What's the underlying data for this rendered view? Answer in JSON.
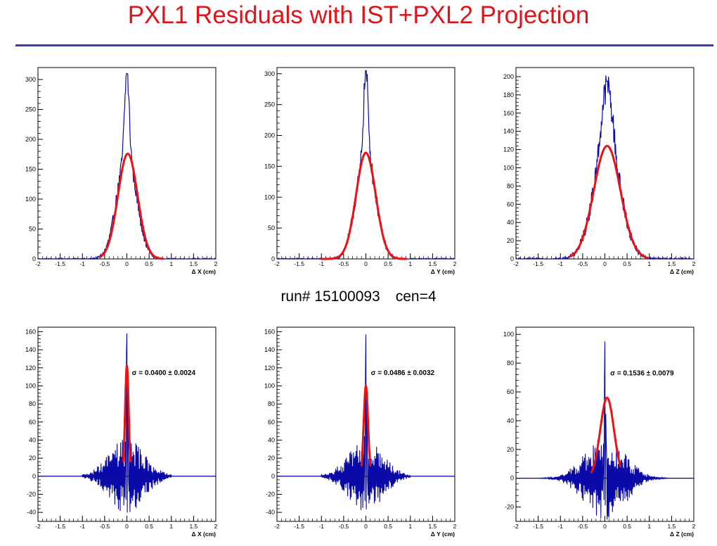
{
  "page": {
    "title": "PXL1 Residuals with IST+PXL2 Projection",
    "run_label": "run# 15100093",
    "cen_label": "cen=4"
  },
  "colors": {
    "title": "#e0121a",
    "rule": "#3b3bb0",
    "histogram": "#0a0aa8",
    "fit": "#ee1111",
    "axis": "#000000"
  },
  "chart_data": [
    {
      "type": "line",
      "id": "top-dx",
      "xlabel": "Δ X (cm)",
      "xlim": [
        -2,
        2
      ],
      "ylim": [
        0,
        320
      ],
      "xticks": [
        -2,
        -1.5,
        -1,
        -0.5,
        0,
        0.5,
        1,
        1.5,
        2
      ],
      "xtick_labels": [
        "-2",
        "-1.5",
        "-1",
        "-0.5",
        "0",
        "0.5",
        "1",
        "1.5",
        "2"
      ],
      "yticks": [
        0,
        50,
        100,
        150,
        200,
        250,
        300
      ],
      "series": [
        {
          "kind": "histogram",
          "shape": "two-gauss",
          "peak": 310,
          "center": 0.0,
          "sigma_narrow": 0.05,
          "narrow_amp": 135,
          "sigma_wide": 0.22,
          "wide_amp": 175,
          "range": [
            -2,
            2
          ]
        },
        {
          "kind": "fit",
          "shape": "gauss",
          "amp": 176,
          "center": 0.02,
          "sigma": 0.22,
          "range": [
            -0.6,
            0.8
          ]
        }
      ],
      "annotation": ""
    },
    {
      "type": "line",
      "id": "top-dy",
      "xlabel": "Δ Y (cm)",
      "xlim": [
        -2,
        2
      ],
      "ylim": [
        0,
        310
      ],
      "xticks": [
        -2,
        -1.5,
        -1,
        -0.5,
        0,
        0.5,
        1,
        1.5,
        2
      ],
      "xtick_labels": [
        "-2",
        "-1.5",
        "-1",
        "-0.5",
        "0",
        "0.5",
        "1",
        "1.5",
        "2"
      ],
      "yticks": [
        0,
        50,
        100,
        150,
        200,
        250,
        300
      ],
      "series": [
        {
          "kind": "histogram",
          "shape": "two-gauss",
          "peak": 305,
          "center": 0.0,
          "sigma_narrow": 0.05,
          "narrow_amp": 135,
          "sigma_wide": 0.22,
          "wide_amp": 170,
          "range": [
            -2,
            2
          ]
        },
        {
          "kind": "fit",
          "shape": "gauss",
          "amp": 172,
          "center": 0.0,
          "sigma": 0.22,
          "range": [
            -1.0,
            0.9
          ]
        }
      ],
      "annotation": ""
    },
    {
      "type": "line",
      "id": "top-dz",
      "xlabel": "Δ Z (cm)",
      "xlim": [
        -2,
        2
      ],
      "ylim": [
        0,
        210
      ],
      "xticks": [
        -2,
        -1.5,
        -1,
        -0.5,
        0,
        0.5,
        1,
        1.5,
        2
      ],
      "xtick_labels": [
        "-2",
        "-1.5",
        "-1",
        "-0.5",
        "0",
        "0.5",
        "1",
        "1.5",
        "2"
      ],
      "yticks": [
        0,
        20,
        40,
        60,
        80,
        100,
        120,
        140,
        160,
        180,
        200
      ],
      "series": [
        {
          "kind": "histogram",
          "shape": "two-gauss",
          "peak": 195,
          "center": 0.05,
          "sigma_narrow": 0.12,
          "narrow_amp": 65,
          "sigma_wide": 0.3,
          "wide_amp": 125,
          "range": [
            -2,
            2
          ]
        },
        {
          "kind": "fit",
          "shape": "gauss",
          "amp": 124,
          "center": 0.05,
          "sigma": 0.3,
          "range": [
            -0.8,
            0.95
          ]
        }
      ],
      "annotation": ""
    },
    {
      "type": "line",
      "id": "bottom-dx",
      "xlabel": "Δ X (cm)",
      "xlim": [
        -2,
        2
      ],
      "ylim": [
        -50,
        165
      ],
      "xticks": [
        -2,
        -1.5,
        -1,
        -0.5,
        0,
        0.5,
        1,
        1.5,
        2
      ],
      "xtick_labels": [
        "-2",
        "-1.5",
        "-1",
        "-0.5",
        "0",
        "0.5",
        "1",
        "1.5",
        "2"
      ],
      "yticks": [
        -40,
        -20,
        0,
        20,
        40,
        60,
        80,
        100,
        120,
        140,
        160
      ],
      "series": [
        {
          "kind": "histogram",
          "shape": "residual-spike",
          "peak": 158,
          "center": 0.0,
          "spread": 0.4,
          "noise": 35,
          "range": [
            -1.0,
            1.0
          ]
        },
        {
          "kind": "fit",
          "shape": "gauss",
          "amp": 122,
          "center": 0.0,
          "sigma": 0.04,
          "range": [
            -0.08,
            0.08
          ]
        }
      ],
      "annotation": "σ = 0.0400 ± 0.0024"
    },
    {
      "type": "line",
      "id": "bottom-dy",
      "xlabel": "Δ Y (cm)",
      "xlim": [
        -2,
        2
      ],
      "ylim": [
        -50,
        165
      ],
      "xticks": [
        -2,
        -1.5,
        -1,
        -0.5,
        0,
        0.5,
        1,
        1.5,
        2
      ],
      "xtick_labels": [
        "-2",
        "-1.5",
        "-1",
        "-0.5",
        "0",
        "0.5",
        "1",
        "1.5",
        "2"
      ],
      "yticks": [
        -40,
        -20,
        0,
        20,
        40,
        60,
        80,
        100,
        120,
        140,
        160
      ],
      "series": [
        {
          "kind": "histogram",
          "shape": "residual-spike",
          "peak": 157,
          "center": 0.0,
          "spread": 0.4,
          "noise": 33,
          "range": [
            -1.0,
            1.0
          ]
        },
        {
          "kind": "fit",
          "shape": "gauss",
          "amp": 100,
          "center": 0.0,
          "sigma": 0.0486,
          "range": [
            -0.1,
            0.1
          ]
        }
      ],
      "annotation": "σ = 0.0486 ± 0.0032"
    },
    {
      "type": "line",
      "id": "bottom-dz",
      "xlabel": "Δ Z (cm)",
      "xlim": [
        -2,
        2
      ],
      "ylim": [
        -30,
        105
      ],
      "xticks": [
        -2,
        -1.5,
        -1,
        -0.5,
        0,
        0.5,
        1,
        1.5,
        2
      ],
      "xtick_labels": [
        "-2",
        "-1.5",
        "-1",
        "-0.5",
        "0",
        "0.5",
        "1",
        "1.5",
        "2"
      ],
      "yticks": [
        -20,
        0,
        20,
        40,
        60,
        80,
        100
      ],
      "series": [
        {
          "kind": "histogram",
          "shape": "residual-spike",
          "peak": 95,
          "center": 0.0,
          "spread": 0.45,
          "noise": 25,
          "range": [
            -1.5,
            1.7
          ]
        },
        {
          "kind": "fit",
          "shape": "gauss",
          "amp": 56,
          "center": 0.05,
          "sigma": 0.1536,
          "range": [
            -0.3,
            0.35
          ]
        }
      ],
      "annotation": "σ = 0.1536 ± 0.0079"
    }
  ]
}
